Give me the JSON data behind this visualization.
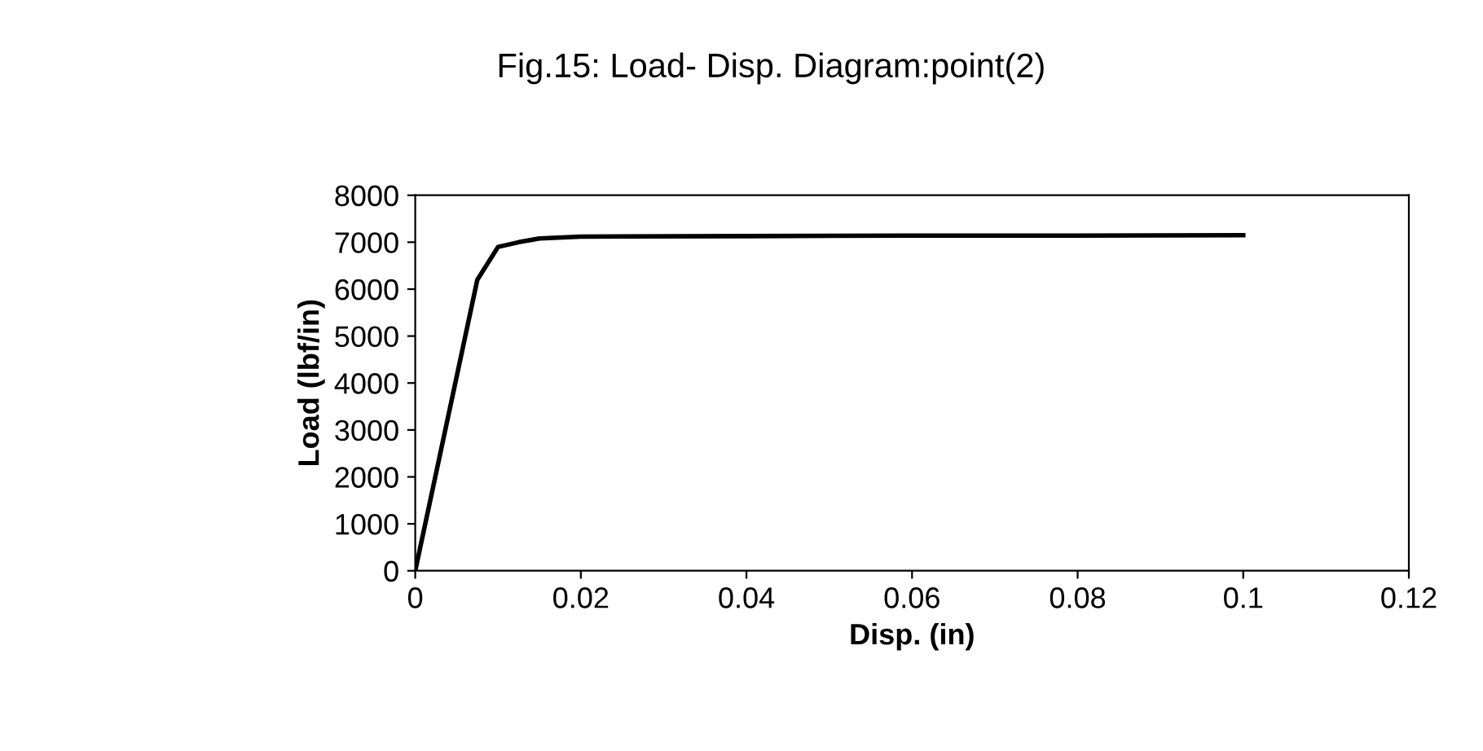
{
  "chart_data": {
    "type": "line",
    "title": "Fig.15: Load- Disp. Diagram:point(2)",
    "xlabel": "Disp. (in)",
    "ylabel": "Load (lbf/in)",
    "x": [
      0,
      0.0075,
      0.01,
      0.0125,
      0.015,
      0.02,
      0.04,
      0.06,
      0.08,
      0.1
    ],
    "series": [
      {
        "color": "#000000",
        "values": [
          0,
          6200,
          6900,
          7000,
          7080,
          7120,
          7130,
          7140,
          7140,
          7150
        ]
      }
    ],
    "xlim": [
      0,
      0.12
    ],
    "xticks": [
      0,
      0.02,
      0.04,
      0.06,
      0.08,
      0.1,
      0.12
    ],
    "ylim": [
      0,
      8000
    ],
    "yticks": [
      0,
      1000,
      2000,
      3000,
      4000,
      5000,
      6000,
      7000,
      8000
    ],
    "grid": false,
    "legend": false,
    "marker": "none",
    "line_style": "solid"
  }
}
